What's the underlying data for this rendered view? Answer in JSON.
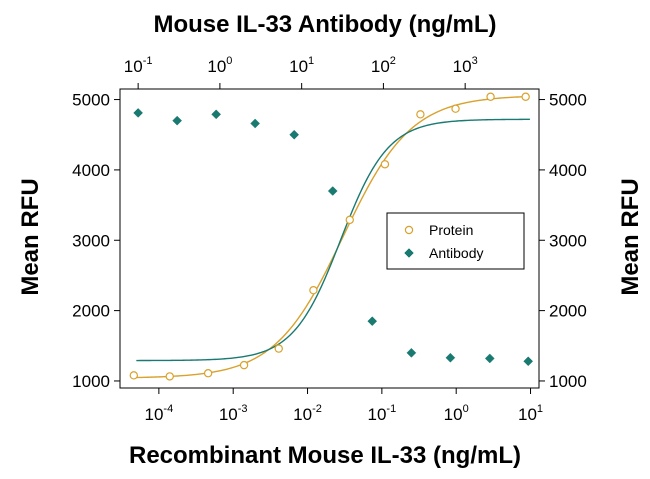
{
  "chart_data": {
    "type": "scatter",
    "title": "Mouse IL-33 Antibody (ng/mL)",
    "xlabel": "Recombinant Mouse IL-33 (ng/mL)",
    "ylabel": "Mean RFU",
    "ylabel_right": "Mean RFU",
    "x_scale": "log",
    "xlim": [
      3e-05,
      13
    ],
    "ylim": [
      900,
      5150
    ],
    "x_ticks": [
      {
        "value": 0.0001,
        "base": "10",
        "exp": "-4"
      },
      {
        "value": 0.001,
        "base": "10",
        "exp": "-3"
      },
      {
        "value": 0.01,
        "base": "10",
        "exp": "-2"
      },
      {
        "value": 0.1,
        "base": "10",
        "exp": "-1"
      },
      {
        "value": 1,
        "base": "10",
        "exp": "0"
      },
      {
        "value": 10,
        "base": "10",
        "exp": "1"
      }
    ],
    "x2_scale": "log",
    "x2lim": [
      0.06,
      8000
    ],
    "x2_ticks": [
      {
        "value": 0.1,
        "base": "10",
        "exp": "-1"
      },
      {
        "value": 1,
        "base": "10",
        "exp": "0"
      },
      {
        "value": 10,
        "base": "10",
        "exp": "1"
      },
      {
        "value": 100,
        "base": "10",
        "exp": "2"
      },
      {
        "value": 1000,
        "base": "10",
        "exp": "3"
      }
    ],
    "y_ticks": [
      "1000",
      "2000",
      "3000",
      "4000",
      "5000"
    ],
    "grid": false,
    "legend_position": "center-right",
    "series": [
      {
        "name": "Protein",
        "axis": "bottom",
        "marker": "open-circle",
        "color": "#d9a12d",
        "x": [
          4.6e-05,
          0.00014,
          0.00046,
          0.0014,
          0.0041,
          0.012,
          0.037,
          0.11,
          0.33,
          0.98,
          2.9,
          8.6
        ],
        "y": [
          1080,
          1065,
          1110,
          1225,
          1460,
          2290,
          3290,
          4080,
          4790,
          4870,
          5040,
          5040
        ],
        "fit": {
          "bottom": 1040,
          "top": 5060,
          "ec50": 0.03,
          "hill": 0.95
        }
      },
      {
        "name": "Antibody",
        "axis": "top",
        "marker": "filled-diamond",
        "color": "#197a72",
        "x": [
          0.1,
          0.3,
          0.9,
          2.7,
          8.1,
          24,
          73,
          220,
          660,
          2000,
          5900
        ],
        "y": [
          4810,
          4700,
          4790,
          4660,
          4500,
          3700,
          1850,
          1400,
          1330,
          1320,
          1280
        ],
        "fit": {
          "bottom": 1290,
          "top": 4720,
          "ec50": 30,
          "hill": 1.5
        }
      }
    ]
  }
}
